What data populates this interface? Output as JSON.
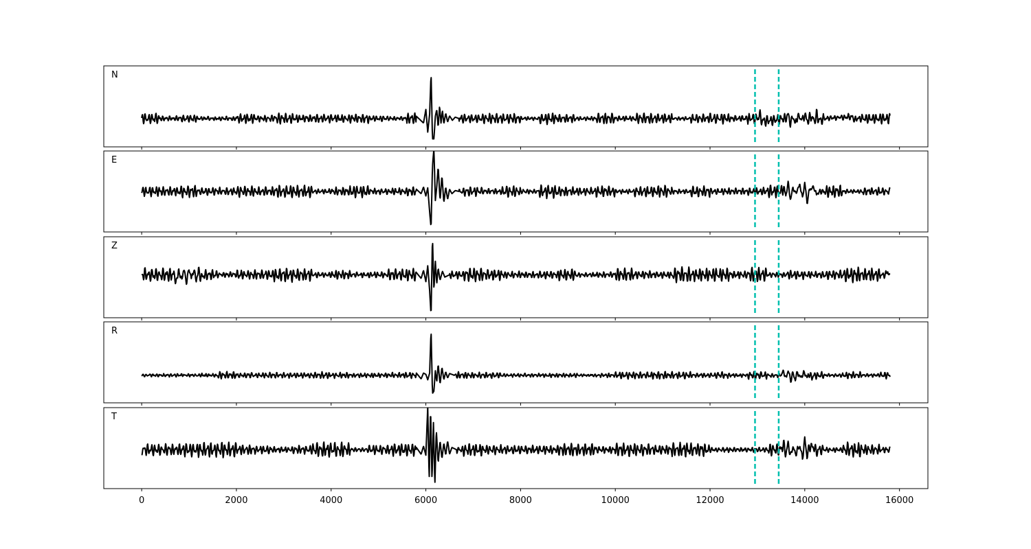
{
  "chart_data": {
    "type": "line",
    "title": "",
    "xlabel": "",
    "ylabel": "",
    "xlim": [
      -800,
      16600
    ],
    "x_ticks": [
      0,
      2000,
      4000,
      6000,
      8000,
      10000,
      12000,
      14000,
      16000
    ],
    "x_tick_labels": [
      "0",
      "2000",
      "4000",
      "6000",
      "8000",
      "10000",
      "12000",
      "14000",
      "16000"
    ],
    "x_start": 0,
    "x_end": 15800,
    "grid": false,
    "line_color": "#000000",
    "marker_color": "#00bfae",
    "markers": [
      12950,
      13450
    ],
    "panels": [
      {
        "label": "N",
        "event": [
          [
            5800,
            0.05
          ],
          [
            5950,
            -0.1
          ],
          [
            6000,
            0.2
          ],
          [
            6040,
            -0.3
          ],
          [
            6080,
            0.1
          ],
          [
            6110,
            1.0
          ],
          [
            6140,
            -0.45
          ],
          [
            6170,
            -0.45
          ],
          [
            6200,
            0.05
          ],
          [
            6230,
            0.2
          ],
          [
            6260,
            -0.2
          ],
          [
            6290,
            0.28
          ],
          [
            6320,
            -0.1
          ],
          [
            6350,
            0.18
          ],
          [
            6380,
            -0.12
          ],
          [
            6420,
            0.12
          ],
          [
            6460,
            -0.08
          ],
          [
            6500,
            0.06
          ],
          [
            6560,
            -0.04
          ],
          [
            6620,
            0.03
          ],
          [
            6700,
            0.0
          ]
        ],
        "late": [
          [
            13000,
            0.0
          ],
          [
            13050,
            0.08
          ],
          [
            13100,
            -0.06
          ],
          [
            13600,
            0.0
          ],
          [
            13650,
            0.1
          ],
          [
            13700,
            -0.12
          ],
          [
            13750,
            0.06
          ],
          [
            13800,
            -0.12
          ],
          [
            13850,
            0.06
          ],
          [
            13950,
            -0.03
          ],
          [
            14000,
            0.08
          ],
          [
            14050,
            -0.05
          ],
          [
            14150,
            0.05
          ],
          [
            14200,
            -0.07
          ],
          [
            14250,
            0.09
          ],
          [
            14300,
            -0.04
          ],
          [
            14400,
            0.0
          ],
          [
            15000,
            0.04
          ],
          [
            15050,
            -0.03
          ],
          [
            15100,
            0.0
          ]
        ]
      },
      {
        "label": "E",
        "event": [
          [
            5800,
            0.05
          ],
          [
            5900,
            -0.05
          ],
          [
            5950,
            0.1
          ],
          [
            6000,
            -0.1
          ],
          [
            6040,
            0.08
          ],
          [
            6080,
            -0.45
          ],
          [
            6110,
            -0.8
          ],
          [
            6140,
            0.55
          ],
          [
            6170,
            0.95
          ],
          [
            6200,
            -0.2
          ],
          [
            6230,
            0.1
          ],
          [
            6260,
            0.55
          ],
          [
            6300,
            -0.2
          ],
          [
            6340,
            0.35
          ],
          [
            6380,
            -0.25
          ],
          [
            6420,
            0.1
          ],
          [
            6460,
            -0.18
          ],
          [
            6500,
            0.05
          ],
          [
            6550,
            -0.05
          ],
          [
            6620,
            0.02
          ],
          [
            6700,
            0.0
          ]
        ],
        "late": [
          [
            13500,
            0.0
          ],
          [
            13550,
            0.08
          ],
          [
            13600,
            -0.1
          ],
          [
            13650,
            0.2
          ],
          [
            13700,
            -0.2
          ],
          [
            13750,
            0.1
          ],
          [
            13800,
            -0.05
          ],
          [
            13900,
            0.15
          ],
          [
            13950,
            -0.15
          ],
          [
            14000,
            0.2
          ],
          [
            14050,
            -0.25
          ],
          [
            14100,
            0.05
          ],
          [
            14200,
            0.08
          ],
          [
            14250,
            -0.08
          ],
          [
            14300,
            0.0
          ]
        ]
      },
      {
        "label": "Z",
        "event": [
          [
            5800,
            0.05
          ],
          [
            5900,
            -0.08
          ],
          [
            5950,
            0.1
          ],
          [
            6000,
            -0.15
          ],
          [
            6040,
            0.2
          ],
          [
            6080,
            -0.35
          ],
          [
            6110,
            -0.9
          ],
          [
            6140,
            0.85
          ],
          [
            6170,
            -0.35
          ],
          [
            6200,
            0.3
          ],
          [
            6230,
            -0.2
          ],
          [
            6260,
            0.15
          ],
          [
            6300,
            -0.12
          ],
          [
            6350,
            0.08
          ],
          [
            6400,
            -0.05
          ],
          [
            6500,
            0.0
          ]
        ],
        "late": [
          [
            700,
            0.0
          ],
          [
            740,
            -0.22
          ],
          [
            780,
            0.18
          ],
          [
            820,
            -0.12
          ],
          [
            900,
            0.1
          ],
          [
            950,
            -0.18
          ],
          [
            1000,
            0.15
          ],
          [
            1050,
            -0.1
          ],
          [
            1100,
            0.12
          ],
          [
            1150,
            -0.12
          ],
          [
            1200,
            0.08
          ],
          [
            1250,
            -0.06
          ],
          [
            1350,
            0.0
          ],
          [
            15700,
            0.0
          ],
          [
            15750,
            0.08
          ],
          [
            15800,
            -0.04
          ]
        ]
      },
      {
        "label": "R",
        "event": [
          [
            5800,
            0.05
          ],
          [
            5900,
            -0.08
          ],
          [
            5950,
            0.05
          ],
          [
            6000,
            0.02
          ],
          [
            6040,
            -0.1
          ],
          [
            6080,
            0.05
          ],
          [
            6110,
            1.0
          ],
          [
            6140,
            -0.4
          ],
          [
            6170,
            -0.35
          ],
          [
            6200,
            0.1
          ],
          [
            6230,
            -0.15
          ],
          [
            6260,
            0.25
          ],
          [
            6300,
            -0.2
          ],
          [
            6340,
            0.18
          ],
          [
            6380,
            -0.1
          ],
          [
            6420,
            0.08
          ],
          [
            6460,
            -0.06
          ],
          [
            6500,
            0.04
          ],
          [
            6600,
            0.0
          ]
        ],
        "late": [
          [
            13500,
            0.0
          ],
          [
            13550,
            0.1
          ],
          [
            13600,
            -0.08
          ],
          [
            13650,
            0.12
          ],
          [
            13700,
            -0.12
          ],
          [
            13750,
            0.05
          ],
          [
            13800,
            -0.1
          ],
          [
            13850,
            0.08
          ],
          [
            13900,
            -0.06
          ],
          [
            14000,
            0.06
          ],
          [
            14050,
            -0.06
          ],
          [
            14100,
            0.04
          ],
          [
            14150,
            -0.05
          ],
          [
            14200,
            0.0
          ]
        ]
      },
      {
        "label": "T",
        "event": [
          [
            5800,
            0.05
          ],
          [
            5900,
            -0.1
          ],
          [
            5950,
            0.08
          ],
          [
            6000,
            -0.12
          ],
          [
            6040,
            0.95
          ],
          [
            6070,
            -0.7
          ],
          [
            6100,
            0.95
          ],
          [
            6130,
            -0.7
          ],
          [
            6160,
            0.6
          ],
          [
            6190,
            -0.8
          ],
          [
            6220,
            0.45
          ],
          [
            6260,
            -0.3
          ],
          [
            6300,
            0.2
          ],
          [
            6340,
            -0.2
          ],
          [
            6380,
            0.15
          ],
          [
            6420,
            -0.12
          ],
          [
            6460,
            0.2
          ],
          [
            6500,
            -0.1
          ],
          [
            6550,
            0.05
          ],
          [
            6650,
            0.0
          ]
        ],
        "late": [
          [
            13500,
            0.0
          ],
          [
            13550,
            0.12
          ],
          [
            13600,
            -0.1
          ],
          [
            13650,
            0.15
          ],
          [
            13700,
            -0.15
          ],
          [
            13750,
            0.08
          ],
          [
            13800,
            -0.1
          ],
          [
            13900,
            0.1
          ],
          [
            13950,
            -0.2
          ],
          [
            14000,
            0.22
          ],
          [
            14050,
            -0.15
          ],
          [
            14100,
            0.08
          ],
          [
            14200,
            0.05
          ],
          [
            14250,
            -0.05
          ],
          [
            14300,
            0.0
          ]
        ]
      }
    ]
  }
}
